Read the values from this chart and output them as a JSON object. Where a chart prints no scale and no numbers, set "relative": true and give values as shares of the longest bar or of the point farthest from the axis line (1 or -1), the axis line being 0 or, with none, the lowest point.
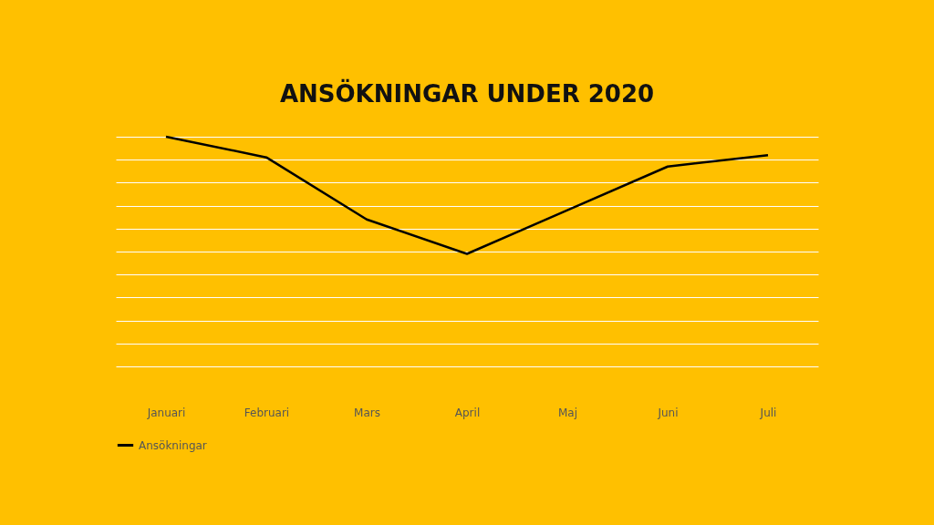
{
  "chart_data": {
    "type": "line",
    "title": "ANSÖKNINGAR UNDER 2020",
    "categories": [
      "Januari",
      "Februari",
      "Mars",
      "April",
      "Maj",
      "Juni",
      "Juli"
    ],
    "relative": true,
    "grid": "y",
    "legend": "bottom",
    "series": [
      {
        "name": "Ansökningar",
        "color": "#000000",
        "values": [
          1,
          0.91,
          0.64,
          0.49,
          0.68,
          0.87,
          0.92
        ]
      }
    ]
  }
}
